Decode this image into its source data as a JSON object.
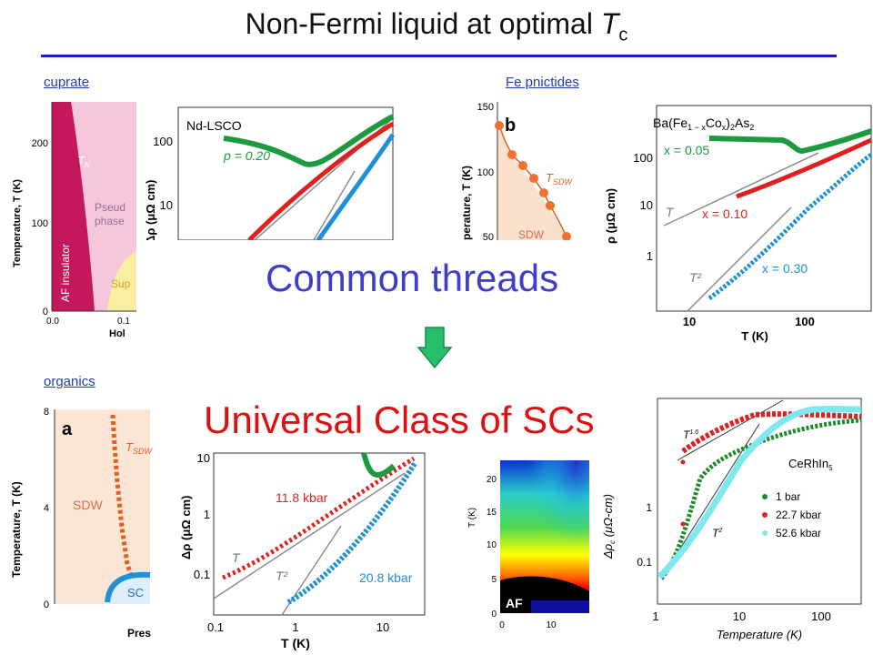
{
  "title": {
    "main": "Non-Fermi liquid at optimal ",
    "var": "T",
    "sub": "c"
  },
  "headlines": {
    "common": "Common threads",
    "universal": "Universal Class of SCs"
  },
  "labels": {
    "cuprate": "cuprate",
    "fe": "Fe pnictides",
    "organics": "organics"
  },
  "cuprate_phase": {
    "ylabel": "Temperature, T (K)",
    "xlabel": "Hol",
    "yticks": [
      "0",
      "100",
      "200"
    ],
    "xticks": [
      "0.0",
      "0.1"
    ],
    "tn": "T",
    "tn_sub": "N",
    "af": "AF insulator",
    "pseudo1": "Pseud",
    "pseudo2": "phase",
    "sup": "Sup"
  },
  "cuprate_res": {
    "name": "Nd-LSCO",
    "p": "p = 0.20",
    "yticks": [
      "100",
      "10"
    ],
    "ylabel": "Δρ (μΩ cm)"
  },
  "fe_phase": {
    "panel": "b",
    "ylabel": "perature, T (K)",
    "yticks": [
      "150",
      "100",
      "50"
    ],
    "tsdw": "T",
    "tsdw_sub": "SDW",
    "sdw": "SDW"
  },
  "fe_res": {
    "comp1": "Ba(Fe",
    "comp_sub1": "1 − x",
    "comp2": "Co",
    "comp_sub2": "x",
    "comp3": ")",
    "comp_sub3": "2",
    "comp4": "As",
    "comp_sub4": "2",
    "x1": "x = 0.05",
    "x2": "x = 0.10",
    "x3": "x = 0.30",
    "t": "T",
    "t2": "T²",
    "yticks": [
      "100",
      "10",
      "1"
    ],
    "ylabel": "ρ (μΩ cm)",
    "xticks": [
      "10",
      "100"
    ],
    "xlabel": "T (K)"
  },
  "org_phase": {
    "panel": "a",
    "ylabel": "Temperature, T (K)",
    "yticks": [
      "8",
      "4",
      "0"
    ],
    "tsdw": "T",
    "tsdw_sub": "SDW",
    "sdw": "SDW",
    "sc": "SC",
    "xlabel": "Pres"
  },
  "org_res": {
    "p1": "11.8 kbar",
    "p2": "20.8 kbar",
    "t": "T",
    "t2": "T²",
    "yticks": [
      "10",
      "1",
      "0.1"
    ],
    "ylabel": "Δρ (μΩ cm)",
    "xticks": [
      "0.1",
      "1",
      "10"
    ],
    "xlabel": "T (K)"
  },
  "af_map": {
    "ylabel": "T (K)",
    "yticks": [
      "20",
      "15",
      "10",
      "5",
      "0"
    ],
    "xticks": [
      "0",
      "10"
    ],
    "af": "AF"
  },
  "cerhin": {
    "name": "CeRhIn",
    "name_sub": "5",
    "ylabel": "Δρ",
    "ylabel_sub": "c",
    "ylabel_rest": " (μΩ-cm)",
    "xlabel": "Temperature (K)",
    "xticks": [
      "1",
      "10",
      "100"
    ],
    "yticks": [
      "1",
      "0.1"
    ],
    "legend": [
      "1 bar",
      "22.7 kbar",
      "52.6 kbar"
    ],
    "colors": [
      "#1d8a2a",
      "#e02020",
      "#7fe8ee"
    ],
    "t_low": "T",
    "t_low_sup": "1.6",
    "t_hi": "T",
    "t_hi_sup": "2"
  }
}
